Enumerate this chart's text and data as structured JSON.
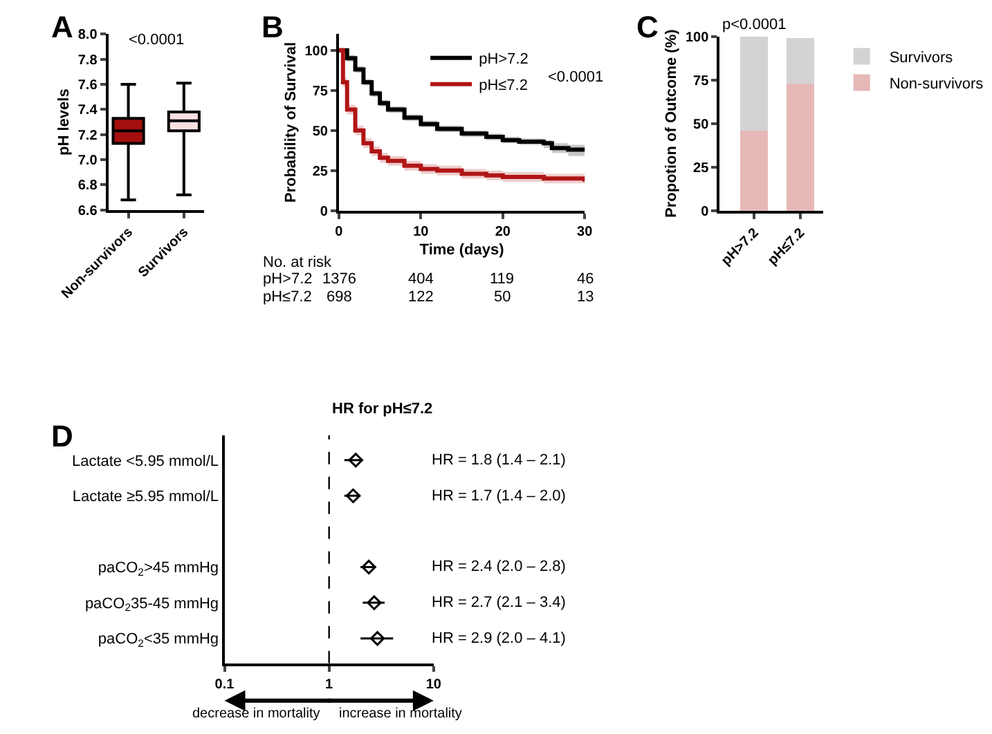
{
  "chart_data": [
    {
      "type": "box",
      "categories": [
        "Non-survivors",
        "Survivors"
      ],
      "boxes": [
        {
          "low": 6.68,
          "q1": 7.13,
          "median": 7.23,
          "q3": 7.33,
          "high": 7.6
        },
        {
          "low": 6.72,
          "q1": 7.23,
          "median": 7.31,
          "q3": 7.38,
          "high": 7.61
        }
      ],
      "colors": [
        "#a50f0f",
        "#fbe0e0"
      ],
      "ylabel": "pH levels",
      "ylim": [
        6.6,
        8.0
      ],
      "yticks": [
        6.6,
        6.8,
        {
          "value": 7.0,
          "label": "7.0"
        },
        7.2,
        7.4,
        7.6,
        7.8,
        {
          "value": 8.0,
          "label": "8.0"
        }
      ],
      "annotations": [
        "A",
        "<0.0001"
      ]
    },
    {
      "type": "step",
      "xlabel": "Time (days)",
      "ylabel": "Probability of Survival",
      "series": [
        {
          "name": "pH>7.2",
          "color": "#000000",
          "x": [
            0,
            1,
            2,
            3,
            4,
            5,
            6,
            8,
            10,
            12,
            15,
            18,
            20,
            22,
            25,
            26,
            28,
            30
          ],
          "values": [
            100,
            95,
            88,
            80,
            73,
            67,
            63,
            58,
            54,
            51,
            48,
            46,
            44,
            43,
            42,
            39,
            38,
            37
          ],
          "upper": [
            100,
            97,
            90,
            82,
            75,
            69,
            65,
            60,
            56,
            53,
            50,
            48,
            46,
            45,
            44,
            42,
            41,
            40
          ],
          "lower": [
            100,
            93,
            86,
            78,
            71,
            65,
            61,
            56,
            52,
            49,
            46,
            44,
            42,
            41,
            39,
            36,
            34,
            32
          ]
        },
        {
          "name": "pH≤7.2",
          "color": "#b01515",
          "x": [
            0,
            0.5,
            1,
            2,
            3,
            4,
            5,
            6,
            8,
            10,
            12,
            15,
            18,
            20,
            25,
            28,
            30
          ],
          "values": [
            100,
            80,
            63,
            50,
            42,
            37,
            33,
            31,
            28,
            26,
            25,
            23,
            22,
            21,
            20,
            20,
            18
          ],
          "upper": [
            100,
            83,
            66,
            53,
            45,
            40,
            36,
            34,
            31,
            29,
            28,
            26,
            25,
            24,
            23,
            23,
            22
          ],
          "lower": [
            100,
            77,
            60,
            47,
            39,
            34,
            30,
            28,
            25,
            23,
            22,
            20,
            19,
            18,
            17,
            17,
            14
          ]
        }
      ],
      "xlim": [
        0,
        30
      ],
      "xticks": [
        0,
        10,
        20,
        30
      ],
      "ylim": [
        0,
        110
      ],
      "yticks": [
        0,
        25,
        50,
        75,
        100
      ],
      "legend": "top right",
      "annotations": [
        "B",
        "<0.0001",
        "No. at risk",
        "pH>7.2",
        "1376",
        "404",
        "119",
        "46",
        "pH≤7.2",
        "698",
        "122",
        "50",
        "13"
      ]
    },
    {
      "type": "bar",
      "stacked": true,
      "categories": [
        "pH>7.2",
        "pH≤7.2"
      ],
      "series": [
        {
          "name": "Non-survivors",
          "color": "#e6b8b8",
          "values": [
            46,
            73
          ]
        },
        {
          "name": "Survivors",
          "color": "#d3d3d3",
          "values": [
            54,
            26
          ]
        }
      ],
      "ylabel": "Propotion of Outcome (%)",
      "ylim": [
        0,
        100
      ],
      "yticks": [
        0,
        25,
        50,
        75,
        100
      ],
      "legend": "right",
      "annotations": [
        "C",
        "p<0.0001"
      ]
    },
    {
      "type": "scatter",
      "orientation": "horizontal",
      "title": "HR for pH≤7.2",
      "categories": [
        "Lactate <5.95 mmol/L",
        "Lactate ≥5.95 mmol/L",
        null,
        "paCO$_{2}$>45 mmHg",
        "paCO$_{2}$35-45 mmHg",
        "paCO$_{2}$<35 mmHg"
      ],
      "values": [
        1.8,
        1.7,
        null,
        2.4,
        2.7,
        2.9
      ],
      "errors": [
        [
          1.4,
          2.1
        ],
        [
          1.4,
          2.0
        ],
        null,
        [
          2.0,
          2.8
        ],
        [
          2.1,
          3.4
        ],
        [
          2.0,
          4.1
        ]
      ],
      "value_labels": [
        "HR = 1.8 (1.4 – 2.1)",
        "HR = 1.7 (1.4 – 2.0)",
        null,
        "HR = 2.4 (2.0 – 2.8)",
        "HR = 2.7 (2.1 – 3.4)",
        "HR = 2.9 (2.0 – 4.1)"
      ],
      "color": "#000000",
      "marker": "diamond",
      "log": "x",
      "xlim": [
        0.1,
        10
      ],
      "xticks": [
        0.1,
        1,
        10
      ],
      "ref_lines": [
        {
          "axis": "x",
          "value": 1,
          "line_style": "dashed"
        }
      ],
      "annotations": [
        "D",
        "decrease in mortality",
        "increase in mortality"
      ]
    }
  ]
}
